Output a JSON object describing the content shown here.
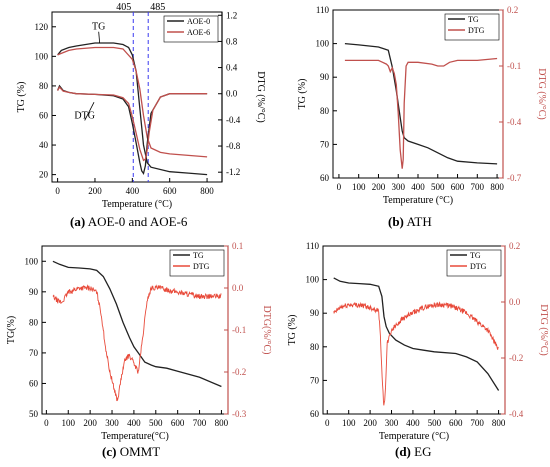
{
  "colors": {
    "tg": "#222222",
    "dtg": "#c0504d",
    "dtg_noisy": "#e84a3a",
    "dtg_axis": "#c0504d",
    "marker": "#3a3af0"
  },
  "chart_data": [
    {
      "type": "line",
      "caption_letter": "(a)",
      "caption_text": "AOE-0 and AOE-6",
      "xlabel": "Temperature (°C)",
      "ylabel_left": "TG (%)",
      "ylabel_right": "DTG (%/°C)",
      "xlim": [
        -30,
        880
      ],
      "ylim_left": [
        15,
        130
      ],
      "ylim_right": [
        -1.35,
        1.25
      ],
      "xticks": [
        0,
        200,
        400,
        600,
        800
      ],
      "yticks_left": [
        20,
        40,
        60,
        80,
        100,
        120
      ],
      "yticks_right": [
        -1.2,
        -0.8,
        -0.4,
        0.0,
        0.4,
        0.8,
        1.2
      ],
      "ytick_labels_right": [
        "-1.2",
        "-0.8",
        "-0.4",
        "0.0",
        "0.4",
        "0.8",
        "1.2"
      ],
      "vlines": [
        405,
        485
      ],
      "vline_labels": [
        "405",
        "485"
      ],
      "annotations": [
        {
          "text": "TG",
          "x": 220,
          "y": 118,
          "ax": 225,
          "ay": 109
        },
        {
          "text": "DTG",
          "x": 145,
          "y": 58,
          "ax": 195,
          "ay": 69
        }
      ],
      "legend_position": "top-right",
      "series": [
        {
          "name": "AOE-0",
          "axis": "left",
          "color_key": "tg",
          "x": [
            0,
            20,
            60,
            100,
            200,
            300,
            350,
            380,
            400,
            420,
            440,
            460,
            480,
            500,
            600,
            700,
            800
          ],
          "y": [
            101,
            104,
            106,
            107,
            109,
            109,
            108,
            106,
            101,
            90,
            65,
            40,
            28,
            25,
            22,
            21,
            20
          ]
        },
        {
          "name": "AOE-6",
          "axis": "left",
          "color_key": "dtg",
          "x": [
            0,
            20,
            60,
            100,
            200,
            300,
            350,
            400,
            420,
            440,
            460,
            480,
            500,
            550,
            600,
            700,
            800
          ],
          "y": [
            101,
            102,
            104,
            105,
            106,
            106,
            105,
            98,
            90,
            78,
            60,
            45,
            38,
            35,
            34,
            33,
            32
          ]
        },
        {
          "axis": "right",
          "color_key": "tg",
          "x": [
            0,
            10,
            30,
            60,
            100,
            200,
            300,
            350,
            380,
            400,
            420,
            440,
            450,
            460,
            470,
            480,
            500,
            550,
            600,
            800
          ],
          "y": [
            0.05,
            0.12,
            0.05,
            0.02,
            0.0,
            -0.01,
            -0.03,
            -0.08,
            -0.2,
            -0.45,
            -0.75,
            -1.05,
            -1.18,
            -1.22,
            -1.1,
            -0.75,
            -0.3,
            -0.05,
            0.0,
            0.0
          ]
        },
        {
          "axis": "right",
          "color_key": "dtg",
          "x": [
            0,
            10,
            30,
            60,
            100,
            200,
            300,
            350,
            380,
            400,
            420,
            440,
            460,
            470,
            480,
            490,
            510,
            550,
            600,
            800
          ],
          "y": [
            0.05,
            0.1,
            0.04,
            0.02,
            0.0,
            -0.01,
            -0.02,
            -0.06,
            -0.15,
            -0.35,
            -0.6,
            -0.85,
            -1.02,
            -1.0,
            -0.85,
            -0.6,
            -0.25,
            -0.05,
            0.0,
            0.0
          ]
        }
      ]
    },
    {
      "type": "line",
      "caption_letter": "(b)",
      "caption_text": "ATH",
      "xlabel": "Temperature (°C)",
      "ylabel_left": "TG (%)",
      "ylabel_right": "DTG (%/°C)",
      "xlim": [
        -30,
        830
      ],
      "ylim_left": [
        60,
        110
      ],
      "ylim_right": [
        -0.7,
        0.2
      ],
      "xticks": [
        0,
        100,
        200,
        300,
        400,
        500,
        600,
        700,
        800
      ],
      "yticks_left": [
        60,
        70,
        80,
        90,
        100,
        110
      ],
      "yticks_right": [
        -0.7,
        -0.4,
        -0.1,
        0.2
      ],
      "ytick_labels_right": [
        "-0.7",
        "-0.4",
        "-0.1",
        "0.2"
      ],
      "legend_position": "top-right",
      "series": [
        {
          "name": "TG",
          "axis": "left",
          "color_key": "tg",
          "x": [
            30,
            100,
            200,
            250,
            270,
            290,
            310,
            320,
            330,
            350,
            400,
            450,
            500,
            550,
            600,
            700,
            800
          ],
          "y": [
            100,
            99.6,
            99,
            98,
            93,
            86,
            78,
            74,
            72,
            71,
            70,
            69,
            67.5,
            66,
            65,
            64.5,
            64.2
          ]
        },
        {
          "name": "DTG",
          "axis": "right",
          "color_key": "dtg",
          "x": [
            30,
            100,
            200,
            240,
            250,
            260,
            270,
            280,
            290,
            300,
            310,
            320,
            325,
            330,
            340,
            350,
            400,
            470,
            500,
            530,
            560,
            600,
            700,
            800
          ],
          "y": [
            -0.07,
            -0.07,
            -0.07,
            -0.09,
            -0.1,
            -0.13,
            -0.11,
            -0.14,
            -0.2,
            -0.35,
            -0.55,
            -0.65,
            -0.6,
            -0.3,
            -0.1,
            -0.08,
            -0.08,
            -0.09,
            -0.1,
            -0.1,
            -0.08,
            -0.07,
            -0.07,
            -0.06
          ]
        }
      ]
    },
    {
      "type": "line",
      "caption_letter": "(c)",
      "caption_text": "OMMT",
      "xlabel": "Temperature(°C)",
      "ylabel_left": "TG(%)",
      "ylabel_right": "DTG(%/°C)",
      "xlim": [
        -20,
        830
      ],
      "ylim_left": [
        50,
        105
      ],
      "ylim_right": [
        -0.3,
        0.1
      ],
      "xticks": [
        0,
        100,
        200,
        300,
        400,
        500,
        600,
        700,
        800
      ],
      "yticks_left": [
        50,
        60,
        70,
        80,
        90,
        100
      ],
      "yticks_right": [
        -0.3,
        -0.2,
        -0.1,
        0.0,
        0.1
      ],
      "ytick_labels_right": [
        "-0.3",
        "-0.2",
        "-0.1",
        "0.0",
        "0.1"
      ],
      "legend_position": "top-right",
      "series": [
        {
          "name": "TG",
          "axis": "left",
          "color_key": "tg",
          "x": [
            30,
            60,
            100,
            150,
            200,
            230,
            260,
            290,
            320,
            350,
            380,
            400,
            420,
            450,
            480,
            500,
            550,
            600,
            700,
            800
          ],
          "y": [
            100,
            99,
            98,
            97.8,
            97.5,
            97,
            95,
            91,
            86,
            80,
            75,
            72,
            70,
            67,
            66,
            65.5,
            65,
            64,
            62,
            59
          ]
        },
        {
          "name": "DTG",
          "axis": "right",
          "color_key": "dtg_noisy",
          "noisy": true,
          "x": [
            30,
            50,
            70,
            100,
            150,
            200,
            230,
            250,
            270,
            290,
            310,
            325,
            340,
            360,
            380,
            400,
            420,
            440,
            460,
            480,
            520,
            600,
            700,
            800
          ],
          "y": [
            -0.02,
            -0.03,
            -0.035,
            -0.01,
            0.0,
            0.0,
            -0.01,
            -0.06,
            -0.14,
            -0.2,
            -0.24,
            -0.27,
            -0.22,
            -0.17,
            -0.16,
            -0.18,
            -0.2,
            -0.12,
            -0.03,
            0.0,
            0.0,
            -0.01,
            -0.02,
            -0.02
          ]
        }
      ]
    },
    {
      "type": "line",
      "caption_letter": "(d)",
      "caption_text": "EG",
      "xlabel": "Temperature (°C)",
      "ylabel_left": "TG (%)",
      "ylabel_right": "DTG (%/°C)",
      "xlim": [
        -20,
        830
      ],
      "ylim_left": [
        60,
        110
      ],
      "ylim_right": [
        -0.4,
        0.2
      ],
      "xticks": [
        0,
        100,
        200,
        300,
        400,
        500,
        600,
        700,
        800
      ],
      "yticks_left": [
        60,
        70,
        80,
        90,
        100,
        110
      ],
      "yticks_right": [
        -0.4,
        -0.2,
        0.0,
        0.2
      ],
      "ytick_labels_right": [
        "-0.4",
        "-0.2",
        "0.0",
        "0.2"
      ],
      "legend_position": "top-right",
      "series": [
        {
          "name": "TG",
          "axis": "left",
          "color_key": "tg",
          "x": [
            30,
            60,
            100,
            150,
            200,
            240,
            255,
            265,
            275,
            290,
            320,
            360,
            400,
            450,
            500,
            600,
            650,
            700,
            750,
            800
          ],
          "y": [
            100.5,
            99.5,
            99,
            98.8,
            98.6,
            98,
            95,
            89,
            86,
            84,
            82,
            80.5,
            79.5,
            79,
            78.5,
            78,
            77,
            75.5,
            72,
            67
          ]
        },
        {
          "name": "DTG",
          "axis": "right",
          "color_key": "dtg_noisy",
          "noisy": true,
          "x": [
            30,
            60,
            100,
            150,
            200,
            240,
            250,
            258,
            265,
            272,
            280,
            300,
            350,
            400,
            450,
            500,
            550,
            600,
            650,
            700,
            750,
            800
          ],
          "y": [
            -0.04,
            -0.02,
            -0.01,
            -0.01,
            -0.02,
            -0.03,
            -0.15,
            -0.3,
            -0.38,
            -0.3,
            -0.15,
            -0.1,
            -0.06,
            -0.04,
            -0.02,
            -0.01,
            -0.01,
            -0.02,
            -0.04,
            -0.07,
            -0.1,
            -0.17
          ]
        }
      ]
    }
  ]
}
